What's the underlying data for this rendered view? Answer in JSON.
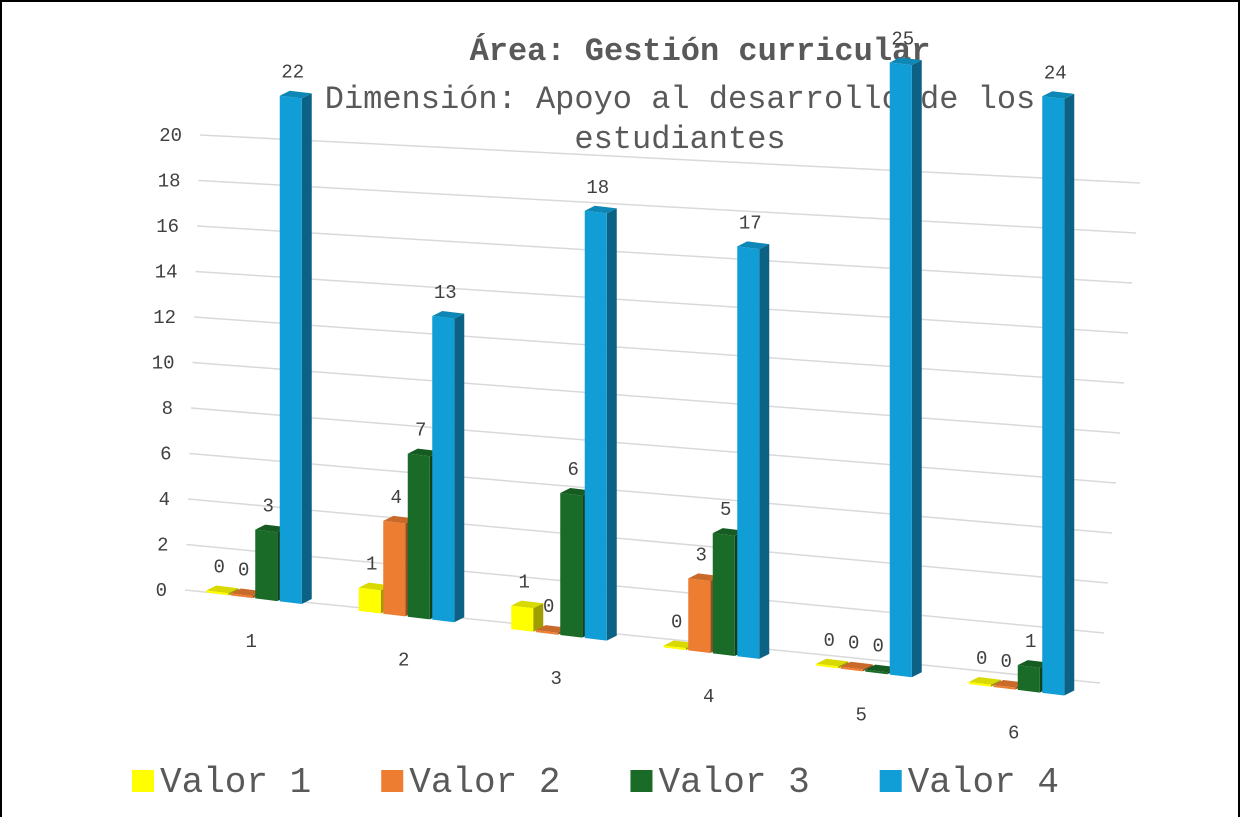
{
  "chart_data": {
    "type": "bar3d",
    "title": "Área: Gestión curricular",
    "subtitle": "Dimensión: Apoyo al desarrollo de los estudiantes",
    "categories": [
      "1",
      "2",
      "3",
      "4",
      "5",
      "6"
    ],
    "series": [
      {
        "name": "Valor 1",
        "color": "#ffff00",
        "values": [
          0,
          1,
          1,
          0,
          0,
          0
        ]
      },
      {
        "name": "Valor 2",
        "color": "#ed7d31",
        "values": [
          0,
          4,
          0,
          3,
          0,
          0
        ]
      },
      {
        "name": "Valor 3",
        "color": "#1a6b27",
        "values": [
          3,
          7,
          6,
          5,
          0,
          1
        ]
      },
      {
        "name": "Valor 4",
        "color": "#119ed6",
        "values": [
          22,
          13,
          18,
          17,
          25,
          24
        ]
      }
    ],
    "ylim": [
      0,
      20
    ],
    "yticks": [
      0,
      2,
      4,
      6,
      8,
      10,
      12,
      14,
      16,
      18,
      20
    ],
    "grid": true,
    "legend": "bottom"
  }
}
